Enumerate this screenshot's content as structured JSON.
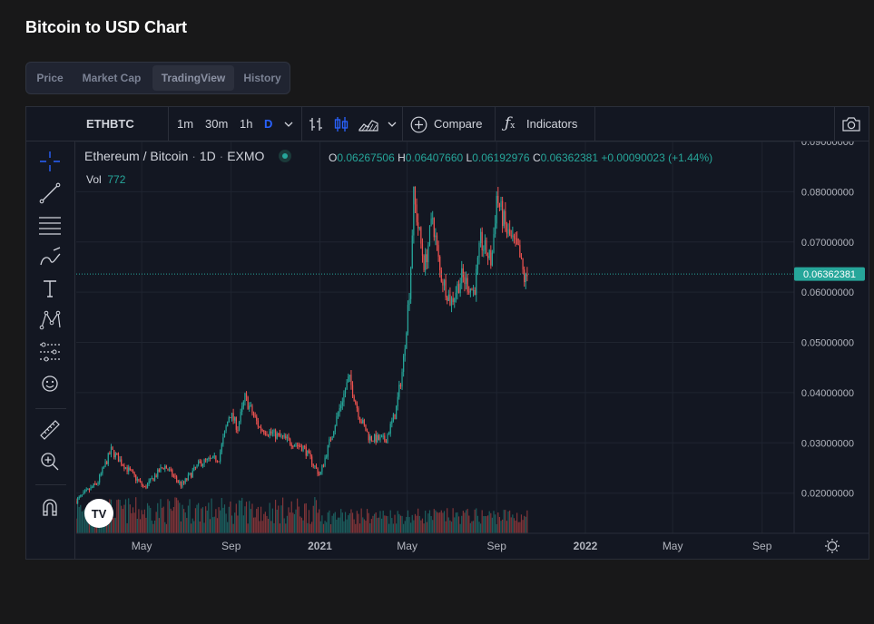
{
  "page": {
    "title": "Bitcoin to USD Chart"
  },
  "tabs": [
    {
      "label": "Price",
      "active": false
    },
    {
      "label": "Market Cap",
      "active": false
    },
    {
      "label": "TradingView",
      "active": true
    },
    {
      "label": "History",
      "active": false
    }
  ],
  "toolbar": {
    "symbol": "ETHBTC",
    "timeframes": [
      "1m",
      "30m",
      "1h",
      "D"
    ],
    "active_timeframe": "D",
    "compare_label": "Compare",
    "indicators_label": "Indicators"
  },
  "legend": {
    "pair": "Ethereum / Bitcoin",
    "interval": "1D",
    "exchange": "EXMO",
    "open_label": "O",
    "open": "0.06267506",
    "high_label": "H",
    "high": "0.06407660",
    "low_label": "L",
    "low": "0.06192976",
    "close_label": "C",
    "close": "0.06362381",
    "change": "+0.00090023 (+1.44%)",
    "vol_label": "Vol",
    "vol_value": "772"
  },
  "colors": {
    "up": "#26a69a",
    "down": "#ef5350",
    "accent": "#2962ff",
    "background": "#131722"
  },
  "chart_data": {
    "type": "candlestick",
    "title": "",
    "xlabel": "",
    "ylabel": "",
    "ylim": [
      0.012,
      0.09
    ],
    "y_ticks": [
      "0.09000000",
      "0.08000000",
      "0.07000000",
      "0.06000000",
      "0.05000000",
      "0.04000000",
      "0.03000000",
      "0.02000000"
    ],
    "y_tick_values": [
      0.09,
      0.08,
      0.07,
      0.06,
      0.05,
      0.04,
      0.03,
      0.02
    ],
    "x_range": [
      "2020-02-01",
      "2022-10-15"
    ],
    "x_ticks": [
      {
        "label": "May",
        "date": "2020-05-01",
        "bold": false
      },
      {
        "label": "Sep",
        "date": "2020-09-01",
        "bold": false
      },
      {
        "label": "2021",
        "date": "2021-01-01",
        "bold": true
      },
      {
        "label": "May",
        "date": "2021-05-01",
        "bold": false
      },
      {
        "label": "Sep",
        "date": "2021-09-01",
        "bold": false
      },
      {
        "label": "2022",
        "date": "2022-01-01",
        "bold": true
      },
      {
        "label": "May",
        "date": "2022-05-01",
        "bold": false
      },
      {
        "label": "Sep",
        "date": "2022-09-01",
        "bold": false
      }
    ],
    "last_price": 0.06362381,
    "last_price_label": "0.06362381",
    "close_path": [
      {
        "date": "2020-02-01",
        "value": 0.0185
      },
      {
        "date": "2020-03-01",
        "value": 0.022
      },
      {
        "date": "2020-03-20",
        "value": 0.0285
      },
      {
        "date": "2020-04-10",
        "value": 0.025
      },
      {
        "date": "2020-05-05",
        "value": 0.021
      },
      {
        "date": "2020-06-01",
        "value": 0.0255
      },
      {
        "date": "2020-06-25",
        "value": 0.0215
      },
      {
        "date": "2020-07-20",
        "value": 0.026
      },
      {
        "date": "2020-08-15",
        "value": 0.027
      },
      {
        "date": "2020-08-30",
        "value": 0.036
      },
      {
        "date": "2020-09-10",
        "value": 0.033
      },
      {
        "date": "2020-09-20",
        "value": 0.039
      },
      {
        "date": "2020-10-10",
        "value": 0.033
      },
      {
        "date": "2020-11-10",
        "value": 0.031
      },
      {
        "date": "2020-12-10",
        "value": 0.029
      },
      {
        "date": "2021-01-01",
        "value": 0.0235
      },
      {
        "date": "2021-01-20",
        "value": 0.033
      },
      {
        "date": "2021-02-10",
        "value": 0.043
      },
      {
        "date": "2021-02-25",
        "value": 0.035
      },
      {
        "date": "2021-03-10",
        "value": 0.031
      },
      {
        "date": "2021-04-01",
        "value": 0.0305
      },
      {
        "date": "2021-04-15",
        "value": 0.036
      },
      {
        "date": "2021-04-25",
        "value": 0.045
      },
      {
        "date": "2021-05-05",
        "value": 0.062
      },
      {
        "date": "2021-05-10",
        "value": 0.079
      },
      {
        "date": "2021-05-15",
        "value": 0.074
      },
      {
        "date": "2021-05-25",
        "value": 0.065
      },
      {
        "date": "2021-06-05",
        "value": 0.075
      },
      {
        "date": "2021-06-15",
        "value": 0.064
      },
      {
        "date": "2021-06-30",
        "value": 0.058
      },
      {
        "date": "2021-07-15",
        "value": 0.063
      },
      {
        "date": "2021-08-01",
        "value": 0.06
      },
      {
        "date": "2021-08-10",
        "value": 0.07
      },
      {
        "date": "2021-08-25",
        "value": 0.066
      },
      {
        "date": "2021-09-01",
        "value": 0.079
      },
      {
        "date": "2021-09-15",
        "value": 0.072
      },
      {
        "date": "2021-10-01",
        "value": 0.068
      },
      {
        "date": "2021-10-10",
        "value": 0.062
      },
      {
        "date": "2021-10-14",
        "value": 0.0636
      }
    ],
    "volume_max": 772
  }
}
